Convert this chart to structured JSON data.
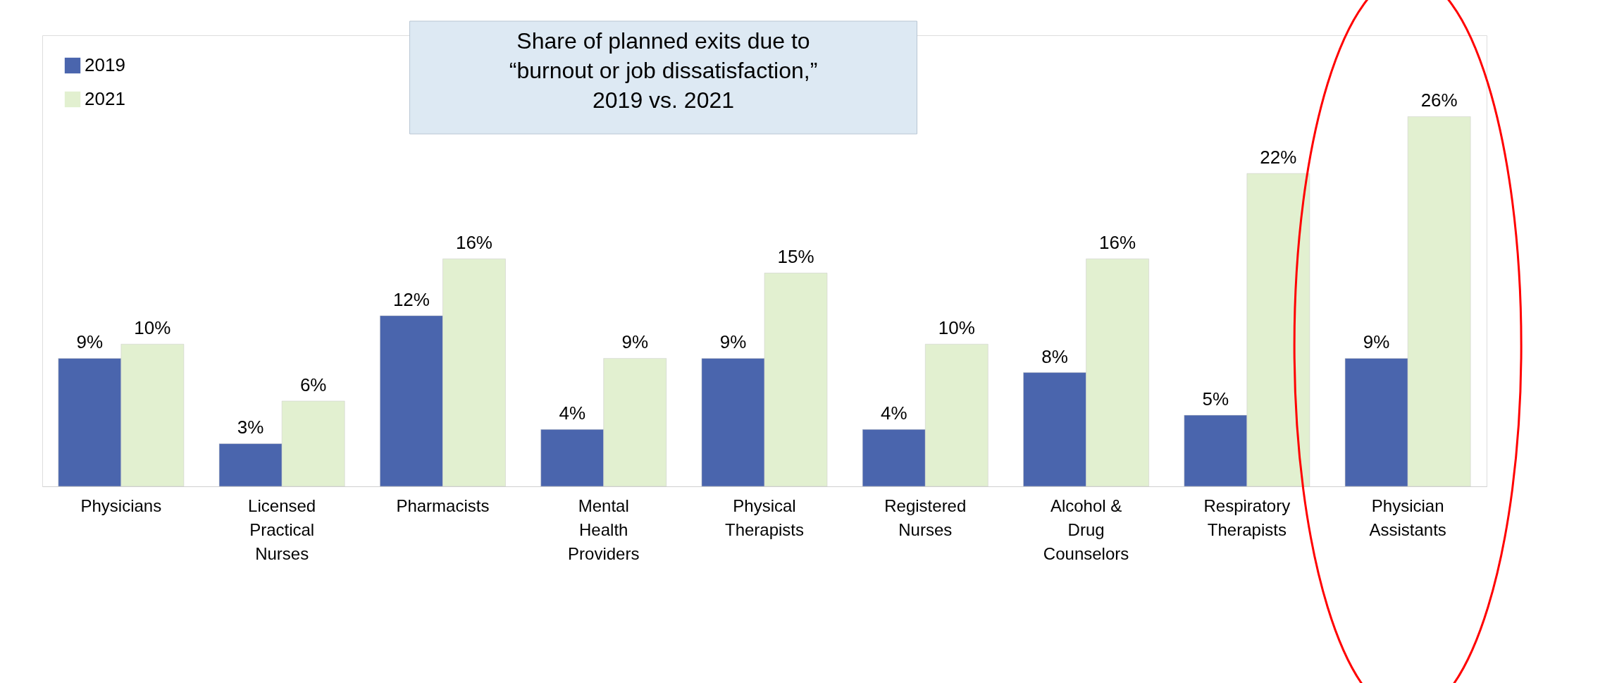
{
  "chart_data": {
    "type": "bar",
    "title": "Share of planned exits due to “burnout or job dissatisfaction,” 2019 vs. 2021",
    "categories": [
      "Physicians",
      "Licensed Practical Nurses",
      "Pharmacists",
      "Mental Health Providers",
      "Physical Therapists",
      "Registered Nurses",
      "Alcohol & Drug Counselors",
      "Respiratory Therapists",
      "Physician Assistants"
    ],
    "series": [
      {
        "name": "2019",
        "color": "#4a65ad",
        "values": [
          9,
          3,
          12,
          4,
          9,
          4,
          8,
          5,
          9
        ],
        "value_labels": [
          "9%",
          "3%",
          "12%",
          "4%",
          "9%",
          "4%",
          "8%",
          "5%",
          "9%"
        ]
      },
      {
        "name": "2021",
        "color": "#e2f0d0",
        "values": [
          10,
          6,
          16,
          9,
          15,
          10,
          16,
          22,
          26
        ],
        "value_labels": [
          "10%",
          "6%",
          "16%",
          "9%",
          "15%",
          "10%",
          "16%",
          "22%",
          "26%"
        ]
      }
    ],
    "legend": "top left",
    "grid": false
  }
}
